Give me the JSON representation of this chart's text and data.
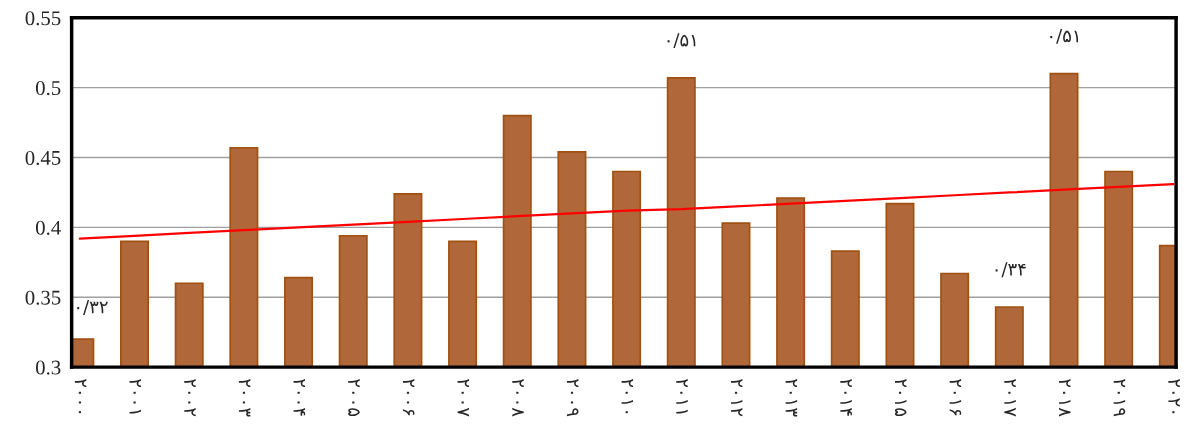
{
  "chart_data": {
    "type": "bar",
    "categories": [
      "۲۰۰۰",
      "۲۰۰۱",
      "۲۰۰۲",
      "۲۰۰۳",
      "۲۰۰۴",
      "۲۰۰۵",
      "۲۰۰۶",
      "۲۰۰۷",
      "۲۰۰۸",
      "۲۰۰۹",
      "۲۰۱۰",
      "۲۰۱۱",
      "۲۰۱۲",
      "۲۰۱۳",
      "۲۰۱۴",
      "۲۰۱۵",
      "۲۰۱۶",
      "۲۰۱۷",
      "۲۰۱۸",
      "۲۰۱۹",
      "۲۰۲۰"
    ],
    "series": [
      {
        "color": "#b0683a",
        "values": [
          0.32,
          0.39,
          0.36,
          0.457,
          0.364,
          0.394,
          0.424,
          0.39,
          0.48,
          0.454,
          0.44,
          0.507,
          0.403,
          0.421,
          0.383,
          0.417,
          0.367,
          0.343,
          0.51,
          0.44,
          0.387
        ],
        "value_labels": [
          "۰/۳۲",
          null,
          null,
          null,
          null,
          null,
          null,
          null,
          null,
          null,
          null,
          "۰/۵۱",
          null,
          null,
          null,
          null,
          null,
          "۰/۳۴",
          "۰/۵۱",
          null,
          null
        ]
      },
      {
        "type": "line",
        "color": "#ff0000",
        "values": [
          0.392,
          0.394,
          0.396,
          0.398,
          0.4,
          0.402,
          0.404,
          0.406,
          0.408,
          0.41,
          0.412,
          0.413,
          0.415,
          0.417,
          0.419,
          0.421,
          0.423,
          0.425,
          0.427,
          0.429,
          0.431
        ]
      }
    ],
    "ylim": [
      0.3,
      0.55
    ],
    "yticks": [
      0.3,
      0.35,
      0.4,
      0.45,
      0.5,
      0.55
    ],
    "grid": "y"
  }
}
